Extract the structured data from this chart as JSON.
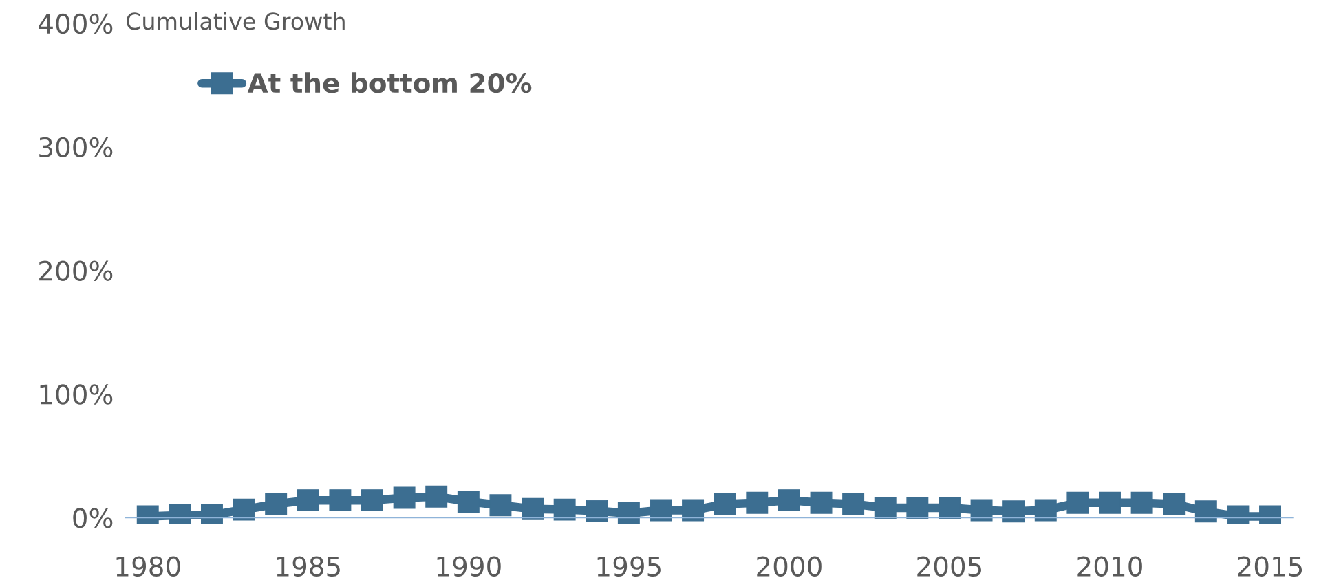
{
  "chart_data": {
    "type": "line",
    "title": "Cumulative Growth",
    "x": [
      1980,
      1981,
      1982,
      1983,
      1984,
      1985,
      1986,
      1987,
      1988,
      1989,
      1990,
      1991,
      1992,
      1993,
      1994,
      1995,
      1996,
      1997,
      1998,
      1999,
      2000,
      2001,
      2002,
      2003,
      2004,
      2005,
      2006,
      2007,
      2008,
      2009,
      2010,
      2011,
      2012,
      2013,
      2014,
      2015
    ],
    "series": [
      {
        "name": "At the bottom 20%",
        "color": "#3c6e91",
        "values": [
          1,
          2,
          2,
          6.5,
          11,
          14,
          14,
          14,
          16,
          17,
          13,
          10,
          7,
          6.5,
          5.5,
          3.5,
          6,
          6,
          11,
          12,
          14,
          12,
          11,
          8,
          8,
          8,
          6,
          5,
          6,
          12,
          12,
          12,
          11,
          5,
          1,
          1
        ]
      }
    ],
    "xlim": [
      1979.3,
      2015.7
    ],
    "xticks": [
      1980,
      1985,
      1990,
      1995,
      2000,
      2005,
      2010,
      2015
    ],
    "ylim": [
      -5,
      400
    ],
    "yticks": [
      {
        "value": 0,
        "label": "0%"
      },
      {
        "value": 100,
        "label": "100%"
      },
      {
        "value": 200,
        "label": "200%"
      },
      {
        "value": 300,
        "label": "300%"
      },
      {
        "value": 400,
        "label": "400%"
      }
    ],
    "grid": false,
    "legend": "top left",
    "marker": "square",
    "line_style": "solid"
  }
}
